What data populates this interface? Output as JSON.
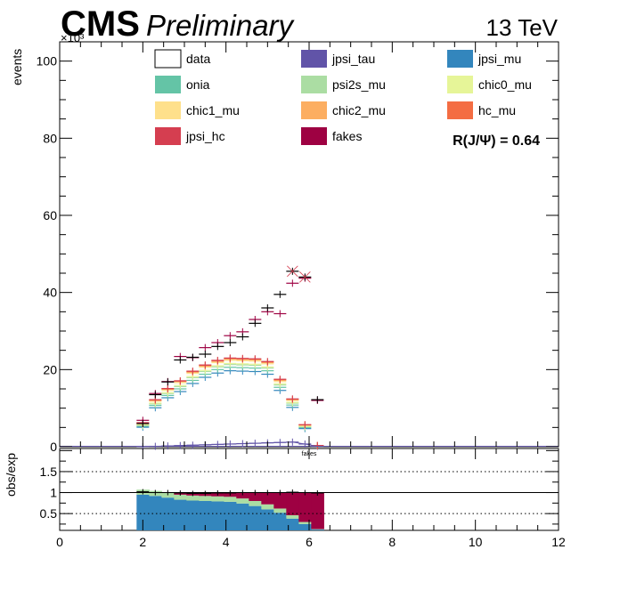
{
  "header": {
    "cms": "CMS",
    "preliminary": "Preliminary",
    "energy": "13 TeV",
    "ratio_text": "R(J/Ψ) = 0.64",
    "exponent": "×10³"
  },
  "chart_data": [
    {
      "type": "bar",
      "panel": "main",
      "stacked": true,
      "xlabel": "",
      "ylabel": "events",
      "ylabel_multiplier": "×10³",
      "xlim": [
        0,
        12
      ],
      "ylim": [
        0,
        105
      ],
      "yticks": [
        0,
        20,
        40,
        60,
        80,
        100
      ],
      "xticks": [
        0,
        2,
        4,
        6,
        8,
        10,
        12
      ],
      "legend": [
        {
          "name": "data",
          "color": "#ffffff"
        },
        {
          "name": "jpsi_tau",
          "color": "#6154a8"
        },
        {
          "name": "jpsi_mu",
          "color": "#3386bd"
        },
        {
          "name": "onia",
          "color": "#64c4a6"
        },
        {
          "name": "psi2s_mu",
          "color": "#abdda3"
        },
        {
          "name": "chic0_mu",
          "color": "#e6f598"
        },
        {
          "name": "chic1_mu",
          "color": "#fee08b"
        },
        {
          "name": "chic2_mu",
          "color": "#fcae61"
        },
        {
          "name": "hc_mu",
          "color": "#f46d43"
        },
        {
          "name": "jpsi_hc",
          "color": "#d53e50"
        },
        {
          "name": "fakes",
          "color": "#9e0142"
        }
      ],
      "x": [
        2.0,
        2.3,
        2.6,
        2.9,
        3.2,
        3.5,
        3.8,
        4.1,
        4.4,
        4.7,
        5.0,
        5.3,
        5.6,
        5.9,
        6.2
      ],
      "x_labels": [
        "2.0",
        "2.3",
        "2.6",
        "2.9",
        "3.2",
        "3.5",
        "3.8",
        "4.1",
        "4.4",
        "4.7",
        "5.0",
        "5.3",
        "5.6",
        "5.9",
        "6.2"
      ],
      "series": [
        {
          "name": "jpsi_tau",
          "color": "#6154a8",
          "values": [
            0.05,
            0.1,
            0.2,
            0.3,
            0.4,
            0.5,
            0.6,
            0.7,
            0.8,
            0.9,
            1.0,
            1.1,
            1.2,
            0.7,
            0.1
          ]
        },
        {
          "name": "jpsi_mu",
          "color": "#3386bd",
          "values": [
            5.0,
            10.0,
            12.5,
            14.0,
            16.0,
            17.5,
            18.5,
            19.0,
            18.8,
            18.6,
            17.8,
            13.5,
            9.0,
            4.0,
            0.2
          ]
        },
        {
          "name": "onia",
          "color": "#64c4a6",
          "values": [
            0.3,
            0.6,
            0.6,
            0.7,
            0.8,
            0.8,
            0.9,
            0.9,
            0.9,
            0.9,
            0.9,
            0.8,
            0.6,
            0.3,
            0.0
          ]
        },
        {
          "name": "psi2s_mu",
          "color": "#abdda3",
          "values": [
            0.2,
            0.4,
            0.5,
            0.6,
            0.7,
            0.7,
            0.7,
            0.7,
            0.7,
            0.7,
            0.7,
            0.6,
            0.5,
            0.2,
            0.0
          ]
        },
        {
          "name": "chic0_mu",
          "color": "#e6f598",
          "values": [
            0.1,
            0.2,
            0.2,
            0.3,
            0.3,
            0.3,
            0.3,
            0.3,
            0.3,
            0.3,
            0.3,
            0.3,
            0.2,
            0.1,
            0.0
          ]
        },
        {
          "name": "chic1_mu",
          "color": "#fee08b",
          "values": [
            0.3,
            0.5,
            0.6,
            0.7,
            0.8,
            0.8,
            0.8,
            0.8,
            0.8,
            0.8,
            0.8,
            0.6,
            0.5,
            0.2,
            0.0
          ]
        },
        {
          "name": "chic2_mu",
          "color": "#fcae61",
          "values": [
            0.1,
            0.2,
            0.3,
            0.3,
            0.3,
            0.3,
            0.3,
            0.3,
            0.3,
            0.3,
            0.3,
            0.3,
            0.2,
            0.1,
            0.0
          ]
        },
        {
          "name": "hc_mu",
          "color": "#f46d43",
          "values": [
            0.1,
            0.1,
            0.1,
            0.1,
            0.2,
            0.2,
            0.2,
            0.2,
            0.2,
            0.2,
            0.2,
            0.2,
            0.1,
            0.1,
            0.0
          ]
        },
        {
          "name": "jpsi_hc",
          "color": "#d53e50",
          "values": [
            0.1,
            0.1,
            0.1,
            0.1,
            0.1,
            0.1,
            0.1,
            0.1,
            0.1,
            0.1,
            0.1,
            0.1,
            0.1,
            0.0,
            0.0
          ]
        },
        {
          "name": "fakes",
          "color": "#9e0142",
          "values": [
            0.6,
            1.6,
            1.8,
            6.3,
            3.5,
            4.5,
            4.6,
            5.8,
            6.9,
            10.2,
            12.9,
            17.0,
            30.0,
            38.0,
            11.7
          ]
        }
      ],
      "data_points": {
        "name": "data",
        "x": [
          2.0,
          2.3,
          2.6,
          2.9,
          3.2,
          3.5,
          3.8,
          4.1,
          4.4,
          4.7,
          5.0,
          5.3,
          5.6,
          5.9,
          6.2
        ],
        "y": [
          6.0,
          13.5,
          16.8,
          22.5,
          23.2,
          24.0,
          26.0,
          27.0,
          28.5,
          32.0,
          36.0,
          39.5,
          45.5,
          44.0,
          12.2
        ]
      },
      "shape_label": "fakes"
    },
    {
      "type": "bar",
      "panel": "ratio",
      "stacked": true,
      "ylabel": "obs/exp",
      "xlim": [
        0,
        12
      ],
      "ylim": [
        0.1,
        2.05
      ],
      "yticks": [
        0.5,
        1,
        1.5
      ],
      "ytick_labels": [
        "0.5",
        "1",
        "1.5"
      ],
      "reference_lines": [
        0.5,
        1,
        1.5
      ],
      "x": [
        2.0,
        2.3,
        2.6,
        2.9,
        3.2,
        3.5,
        3.8,
        4.1,
        4.4,
        4.7,
        5.0,
        5.3,
        5.6,
        5.9,
        6.2
      ],
      "fractions": {
        "jpsi_mu": [
          0.85,
          0.82,
          0.78,
          0.73,
          0.71,
          0.7,
          0.69,
          0.68,
          0.64,
          0.58,
          0.5,
          0.42,
          0.28,
          0.15,
          0.02
        ],
        "others": [
          0.12,
          0.12,
          0.12,
          0.12,
          0.12,
          0.12,
          0.12,
          0.12,
          0.12,
          0.12,
          0.12,
          0.1,
          0.08,
          0.05,
          0.01
        ]
      },
      "ratio_points": [
        1.02,
        1.0,
        1.0,
        0.99,
        0.98,
        0.98,
        0.99,
        0.99,
        1.0,
        1.0,
        1.0,
        1.0,
        1.01,
        1.0,
        0.99
      ]
    }
  ]
}
